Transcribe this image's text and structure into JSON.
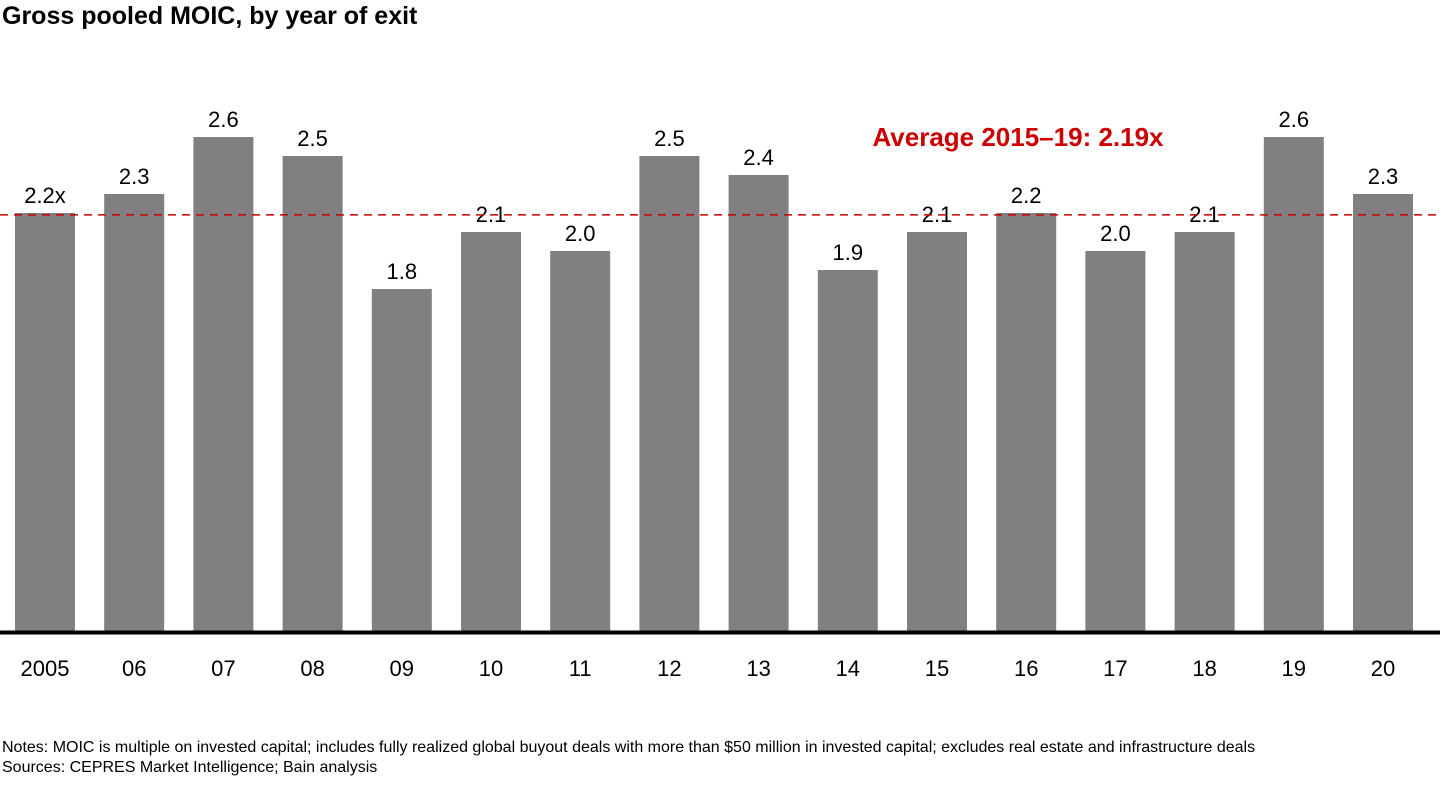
{
  "title": "Gross pooled MOIC, by year of exit",
  "chart_data": {
    "type": "bar",
    "categories": [
      "2005",
      "06",
      "07",
      "08",
      "09",
      "10",
      "11",
      "12",
      "13",
      "14",
      "15",
      "16",
      "17",
      "18",
      "19",
      "20"
    ],
    "values": [
      2.2,
      2.3,
      2.6,
      2.5,
      1.8,
      2.1,
      2.0,
      2.5,
      2.4,
      1.9,
      2.1,
      2.2,
      2.0,
      2.1,
      2.6,
      2.3
    ],
    "data_labels": [
      "2.2x",
      "2.3",
      "2.6",
      "2.5",
      "1.8",
      "2.1",
      "2.0",
      "2.5",
      "2.4",
      "1.9",
      "2.1",
      "2.2",
      "2.0",
      "2.1",
      "2.6",
      "2.3"
    ],
    "bar_color": "#808083",
    "reference_line": {
      "value": 2.19,
      "label": "Average 2015–19: 2.19x",
      "color": "#cc0000",
      "style": "dashed"
    },
    "ylim": [
      0,
      2.7
    ],
    "grid": false
  },
  "notes": {
    "notes_text": "Notes: MOIC is multiple on invested capital; includes fully realized global buyout deals with more than $50 million in invested capital; excludes real estate and infrastructure deals",
    "sources_text": "Sources: CEPRES Market Intelligence; Bain analysis"
  }
}
